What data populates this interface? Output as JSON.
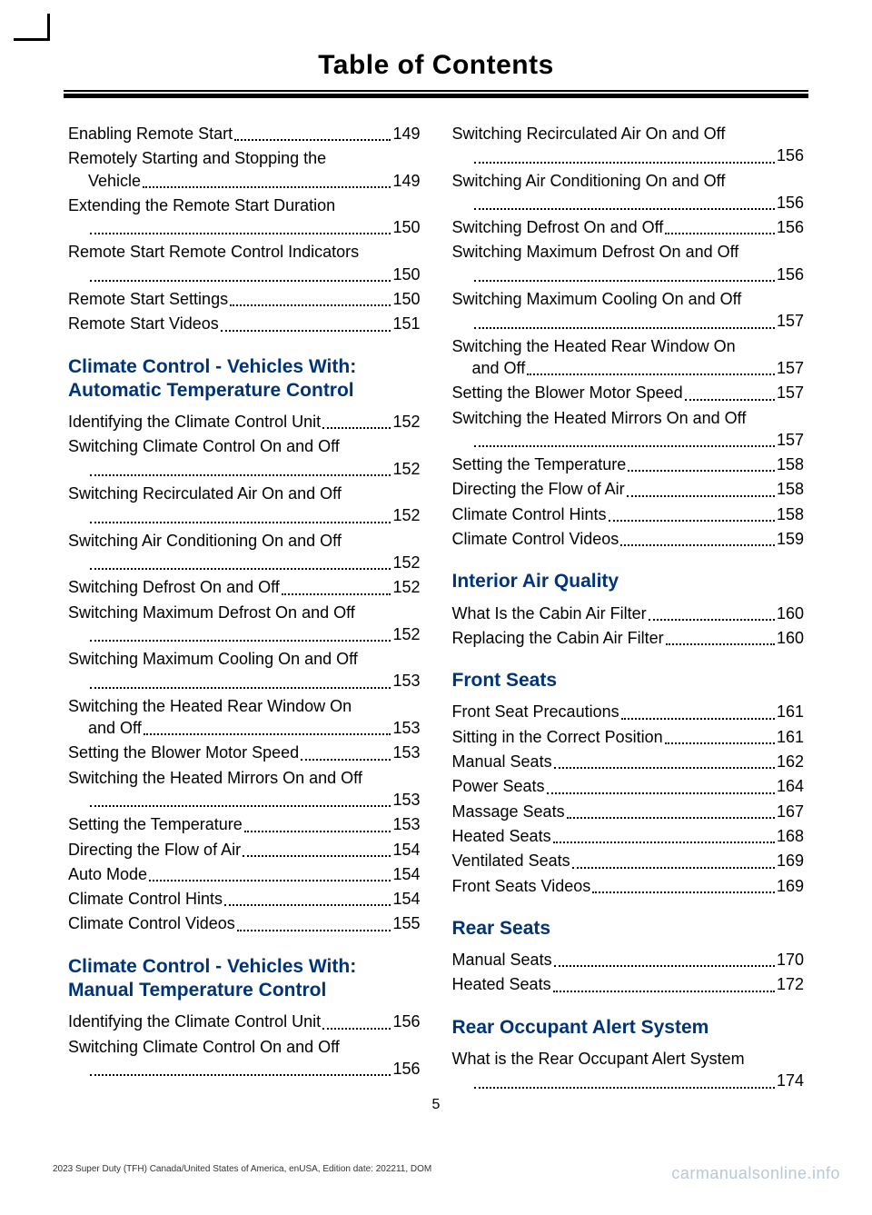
{
  "header": {
    "title": "Table of Contents"
  },
  "pageNumber": "5",
  "footer": {
    "left": "2023 Super Duty (TFH) Canada/United States of America, enUSA, Edition date: 202211, DOM",
    "right": "carmanualsonline.info"
  },
  "col1": {
    "pre": [
      {
        "label": "Enabling Remote Start",
        "page": "149"
      },
      {
        "label": "Remotely Starting and Stopping the",
        "cont": "Vehicle",
        "page": "149"
      },
      {
        "label": "Extending the Remote Start Duration",
        "wrap": true,
        "page": "150"
      },
      {
        "label": "Remote Start Remote Control Indicators",
        "wrap": true,
        "page": "150"
      },
      {
        "label": "Remote Start Settings",
        "page": "150"
      },
      {
        "label": "Remote Start Videos",
        "page": "151"
      }
    ],
    "s1": {
      "title": "Climate Control - Vehicles With: Automatic Temperature Control",
      "items": [
        {
          "label": "Identifying the Climate Control Unit",
          "page": "152"
        },
        {
          "label": "Switching Climate Control On and Off",
          "wrap": true,
          "page": "152"
        },
        {
          "label": "Switching Recirculated Air On and Off",
          "wrap": true,
          "page": "152"
        },
        {
          "label": "Switching Air Conditioning On and Off",
          "wrap": true,
          "page": "152"
        },
        {
          "label": "Switching Defrost On and Off",
          "page": "152"
        },
        {
          "label": "Switching Maximum Defrost On and Off",
          "wrap": true,
          "page": "152"
        },
        {
          "label": "Switching Maximum Cooling On and Off",
          "wrap": true,
          "page": "153"
        },
        {
          "label": "Switching the Heated Rear Window On",
          "cont": "and Off",
          "page": "153"
        },
        {
          "label": "Setting the Blower Motor Speed",
          "page": "153"
        },
        {
          "label": "Switching the Heated Mirrors On and Off",
          "wrap": true,
          "page": "153"
        },
        {
          "label": "Setting the Temperature",
          "page": "153"
        },
        {
          "label": "Directing the Flow of Air",
          "page": "154"
        },
        {
          "label": "Auto Mode",
          "page": "154"
        },
        {
          "label": "Climate Control Hints",
          "page": "154"
        },
        {
          "label": "Climate Control Videos",
          "page": "155"
        }
      ]
    },
    "s2": {
      "title": "Climate Control - Vehicles With: Manual Temperature Control",
      "items": [
        {
          "label": "Identifying the Climate Control Unit",
          "page": "156"
        },
        {
          "label": "Switching Climate Control On and Off",
          "wrap": true,
          "page": "156"
        }
      ]
    }
  },
  "col2": {
    "pre": [
      {
        "label": "Switching Recirculated Air On and Off",
        "wrap": true,
        "page": "156"
      },
      {
        "label": "Switching Air Conditioning On and Off",
        "wrap": true,
        "page": "156"
      },
      {
        "label": "Switching Defrost On and Off",
        "page": "156"
      },
      {
        "label": "Switching Maximum Defrost On and Off",
        "wrap": true,
        "page": "156"
      },
      {
        "label": "Switching Maximum Cooling On and Off",
        "wrap": true,
        "page": "157"
      },
      {
        "label": "Switching the Heated Rear Window On",
        "cont": "and Off",
        "page": "157"
      },
      {
        "label": "Setting the Blower Motor Speed",
        "page": "157"
      },
      {
        "label": "Switching the Heated Mirrors On and Off",
        "wrap": true,
        "page": "157"
      },
      {
        "label": "Setting the Temperature",
        "page": "158"
      },
      {
        "label": "Directing the Flow of Air",
        "page": "158"
      },
      {
        "label": "Climate Control Hints",
        "page": "158"
      },
      {
        "label": "Climate Control Videos",
        "page": "159"
      }
    ],
    "s1": {
      "title": "Interior Air Quality",
      "items": [
        {
          "label": "What Is the Cabin Air Filter",
          "page": "160"
        },
        {
          "label": "Replacing the Cabin Air Filter",
          "page": "160"
        }
      ]
    },
    "s2": {
      "title": "Front Seats",
      "items": [
        {
          "label": "Front Seat Precautions",
          "page": "161"
        },
        {
          "label": "Sitting in the Correct Position",
          "page": "161"
        },
        {
          "label": "Manual Seats",
          "page": "162"
        },
        {
          "label": "Power Seats",
          "page": "164"
        },
        {
          "label": "Massage Seats",
          "page": "167"
        },
        {
          "label": "Heated Seats",
          "page": "168"
        },
        {
          "label": "Ventilated Seats",
          "page": "169"
        },
        {
          "label": "Front Seats Videos",
          "page": "169"
        }
      ]
    },
    "s3": {
      "title": "Rear Seats",
      "items": [
        {
          "label": "Manual Seats",
          "page": "170"
        },
        {
          "label": "Heated Seats",
          "page": "172"
        }
      ]
    },
    "s4": {
      "title": "Rear Occupant Alert System",
      "items": [
        {
          "label": "What is the Rear Occupant Alert System",
          "wrap": true,
          "page": "174"
        }
      ]
    }
  }
}
